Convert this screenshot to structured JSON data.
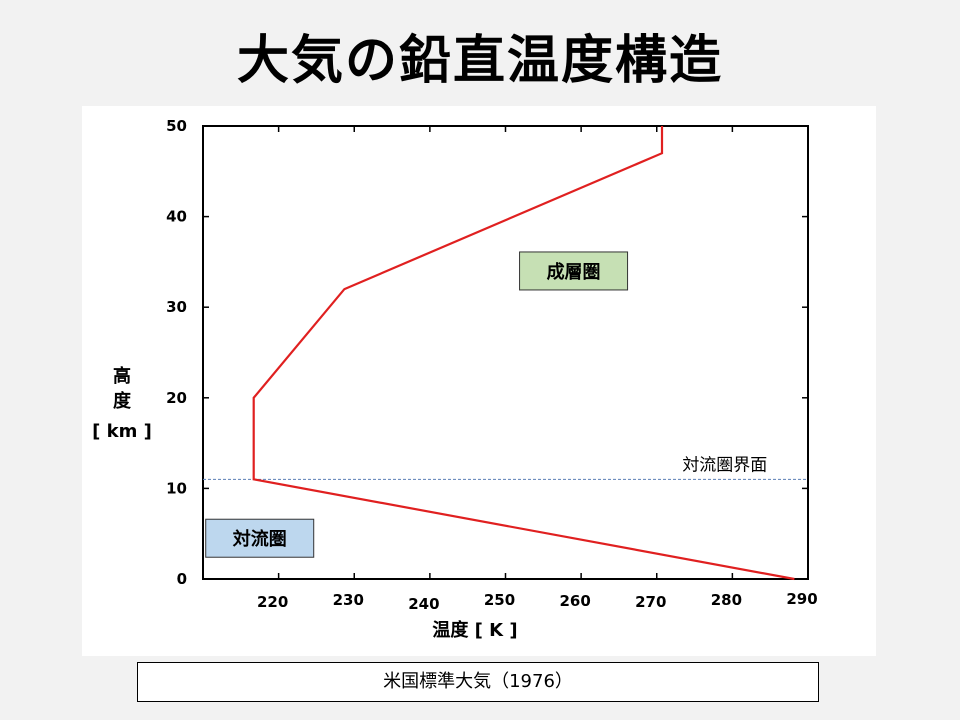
{
  "slide": {
    "title": "大気の鉛直温度構造"
  },
  "source": {
    "label": "米国標準大気（1976）"
  },
  "chart_data": {
    "type": "line",
    "xlabel": "温度 [ K ]",
    "ylabel_lines": [
      "高",
      "度",
      "[ km ]"
    ],
    "xlim": [
      210,
      290
    ],
    "ylim": [
      0,
      50
    ],
    "x_ticks": [
      220,
      230,
      240,
      250,
      260,
      270,
      280,
      290
    ],
    "y_ticks": [
      0,
      10,
      20,
      30,
      40,
      50
    ],
    "grid": false,
    "series": [
      {
        "color": "#e02020",
        "points": [
          {
            "x": 288.2,
            "y": 0
          },
          {
            "x": 216.7,
            "y": 11
          },
          {
            "x": 216.7,
            "y": 20
          },
          {
            "x": 228.7,
            "y": 32
          },
          {
            "x": 270.7,
            "y": 47
          },
          {
            "x": 270.7,
            "y": 50
          }
        ]
      }
    ],
    "reference_lines": [
      {
        "y": 11,
        "style": "dashed",
        "color": "#5b7fb5",
        "label": "対流圏界面"
      }
    ],
    "region_labels": [
      {
        "text": "成層圏",
        "fill": "#c6e0b4",
        "x": 259,
        "y": 34
      },
      {
        "text": "対流圏",
        "fill": "#bdd7ee",
        "x": 217.5,
        "y": 4.5
      }
    ]
  }
}
